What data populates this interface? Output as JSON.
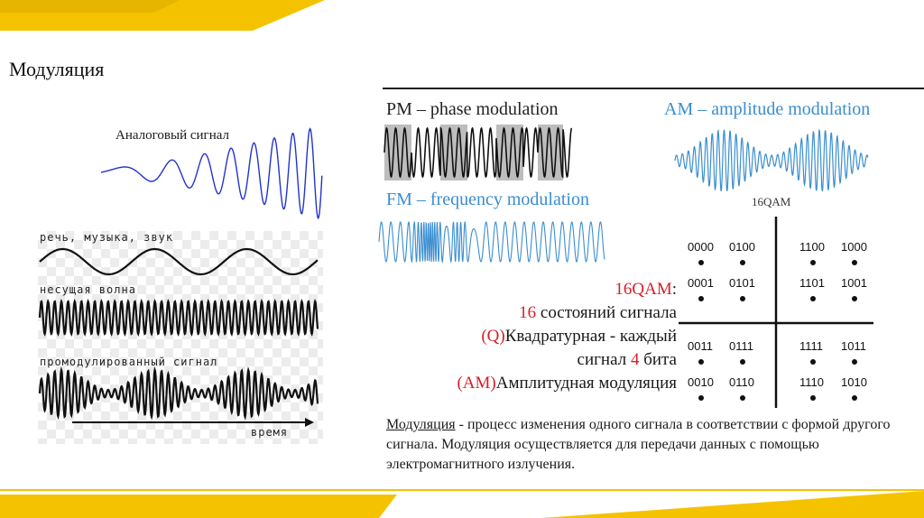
{
  "slide": {
    "title": "Модуляция",
    "accent_color": "#f5c200"
  },
  "analog": {
    "label": "Аналоговый сигнал",
    "line_color": "#2233cc"
  },
  "modulation_demo": {
    "speech_label": "речь, музыка, звук",
    "carrier_label": "несущая волна",
    "modulated_label": "промодулированный сигнал",
    "time_label": "время"
  },
  "pm": {
    "label": "PM – phase modulation"
  },
  "am": {
    "label": "AM – amplitude modulation",
    "color": "#3a8ed0"
  },
  "fm": {
    "label": "FM – frequency modulation",
    "color": "#3a8ed0"
  },
  "qam": {
    "title": "16QAM",
    "points": [
      "0000",
      "0100",
      "1100",
      "1000",
      "0001",
      "0101",
      "1101",
      "1001",
      "0011",
      "0111",
      "1111",
      "1011",
      "0010",
      "0110",
      "1110",
      "1010"
    ],
    "desc": {
      "name": "16QAM",
      "colon": ":",
      "states_num": "16",
      "states_text": " состояний сигнала",
      "q": "(Q)",
      "q_text": "Квадратурная - каждый",
      "bits_prefix": "сигнал ",
      "bits_num": "4",
      "bits_suffix": " бита",
      "am": "(AM)",
      "am_text": "Амплитудная модуляция"
    }
  },
  "definition": {
    "term": "Модуляция",
    "text": " - процесс изменения одного сигнала в соответствии с формой другого сигнала. Модуляция осуществляется для передачи   данных с помощью электромагнитного излучения."
  }
}
